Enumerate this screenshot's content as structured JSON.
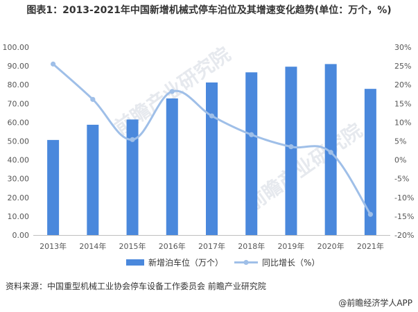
{
  "title": "图表1：2013-2021年中国新增机械式停车泊位及其增速变化趋势(单位：万个，%)",
  "source": "资料来源：中国重型机械工业协会停车设备工作委员会 前瞻产业研究院",
  "brand": "@前瞻经济学人APP",
  "watermarks": [
    "前瞻产业研究院",
    "前瞻产业研究院"
  ],
  "chart_data": {
    "type": "bar+line",
    "categories": [
      "2013年",
      "2014年",
      "2015年",
      "2016年",
      "2017年",
      "2018年",
      "2019年",
      "2020年",
      "2021年"
    ],
    "series": [
      {
        "name": "新增泊车位（万个）",
        "type": "bar",
        "axis": "left",
        "color": "#4a88dc",
        "values": [
          50.6,
          58.7,
          61.5,
          72.7,
          81.2,
          86.6,
          89.6,
          91.0,
          77.8
        ]
      },
      {
        "name": "同比增长（%）",
        "type": "line",
        "axis": "right",
        "color": "#9fbfe8",
        "values": [
          25.5,
          16.1,
          5.4,
          18.2,
          11.7,
          6.7,
          3.5,
          2.0,
          -14.5
        ]
      }
    ],
    "y_left": {
      "min": 0,
      "max": 100,
      "step": 10,
      "ticks": [
        "0.00",
        "10.00",
        "20.00",
        "30.00",
        "40.00",
        "50.00",
        "60.00",
        "70.00",
        "80.00",
        "90.00",
        "100.00"
      ]
    },
    "y_right": {
      "min": -20,
      "max": 30,
      "step": 5,
      "ticks": [
        "-20%",
        "-15%",
        "-10%",
        "-5%",
        "0%",
        "5%",
        "10%",
        "15%",
        "20%",
        "25%",
        "30%"
      ]
    },
    "legend_position": "bottom",
    "grid": false
  }
}
